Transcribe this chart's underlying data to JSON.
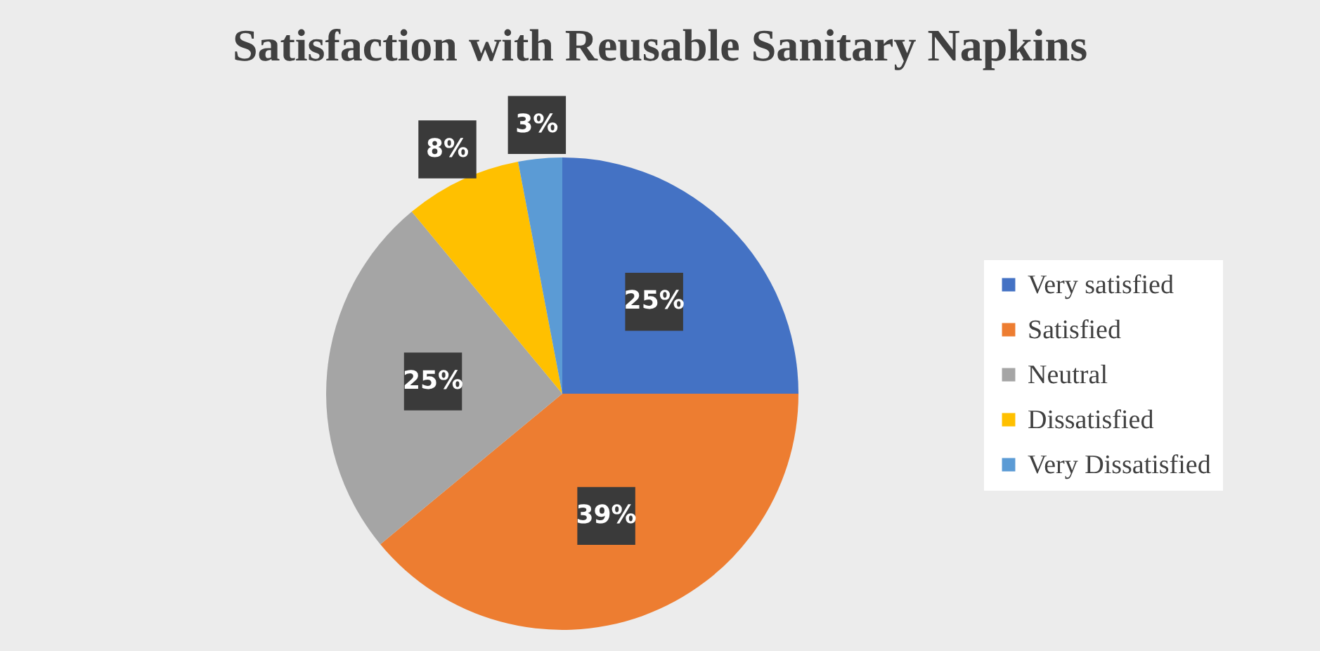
{
  "chart_data": {
    "type": "pie",
    "title": "Satisfaction with Reusable Sanitary Napkins",
    "categories": [
      "Very satisfied",
      "Satisfied",
      "Neutral",
      "Dissatisfied",
      "Very Dissatisfied"
    ],
    "values": [
      25,
      39,
      25,
      8,
      3
    ],
    "colors": [
      "#4472c4",
      "#ed7d31",
      "#a5a5a5",
      "#ffc000",
      "#5b9bd5"
    ],
    "value_labels": [
      "25%",
      "39%",
      "25%",
      "8%",
      "3%"
    ],
    "legend": "right"
  }
}
